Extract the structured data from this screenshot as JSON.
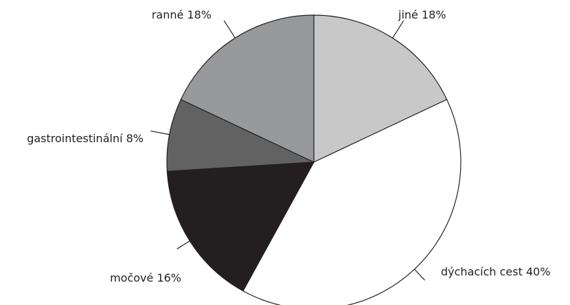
{
  "chart_data": {
    "type": "pie",
    "start_angle_deg": 0,
    "direction": "clockwise",
    "slices": [
      {
        "label": "jiné 18%",
        "value": 18,
        "color": "#c8c8c9"
      },
      {
        "label": "dýchacích cest 40%",
        "value": 40,
        "color": "#ffffff"
      },
      {
        "label": "močové 16%",
        "value": 16,
        "color": "#231f20"
      },
      {
        "label": "gastrointestinální 8%",
        "value": 8,
        "color": "#626262"
      },
      {
        "label": "ranné 18%",
        "value": 18,
        "color": "#98999b"
      }
    ]
  }
}
